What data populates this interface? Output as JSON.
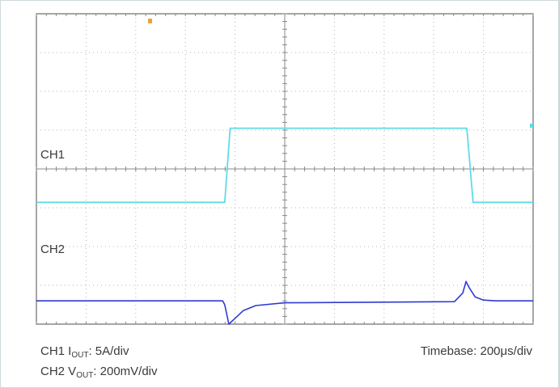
{
  "chart_data": {
    "type": "line",
    "title": "",
    "x_divisions": 10,
    "y_divisions": 8,
    "grid": true,
    "series": [
      {
        "name": "CH1",
        "color": "#5fdbe6",
        "unit_per_div": "5A/div",
        "x": [
          0,
          4.55,
          4.68,
          10.4,
          10.55,
          12
        ],
        "y": [
          -0.86,
          -0.86,
          1.05,
          1.05,
          -0.86,
          -0.86
        ]
      },
      {
        "name": "CH2",
        "color": "#2e3bcf",
        "unit_per_div": "200mV/div",
        "x": [
          0,
          4.5,
          4.55,
          4.65,
          4.8,
          5.0,
          5.3,
          6.0,
          10.1,
          10.3,
          10.38,
          10.45,
          10.6,
          10.8,
          11.1,
          12
        ],
        "y": [
          -3.4,
          -3.4,
          -3.5,
          -4.0,
          -3.85,
          -3.65,
          -3.52,
          -3.45,
          -3.42,
          -3.2,
          -2.9,
          -3.05,
          -3.3,
          -3.38,
          -3.4,
          -3.4
        ]
      }
    ],
    "labels": {
      "ch1": "CH1",
      "ch2": "CH2"
    }
  },
  "captions": {
    "ch1_prefix": "CH1 I",
    "ch1_sub": "OUT",
    "ch1_scale": ": 5A/div",
    "ch2_prefix": "CH2 V",
    "ch2_sub": "OUT",
    "ch2_scale": ": 200mV/div",
    "timebase": "Timebase: 200μs/div"
  },
  "markers": {
    "trigger_color": "#f0a030",
    "ch1_ref_color": "#5fdbe6"
  }
}
